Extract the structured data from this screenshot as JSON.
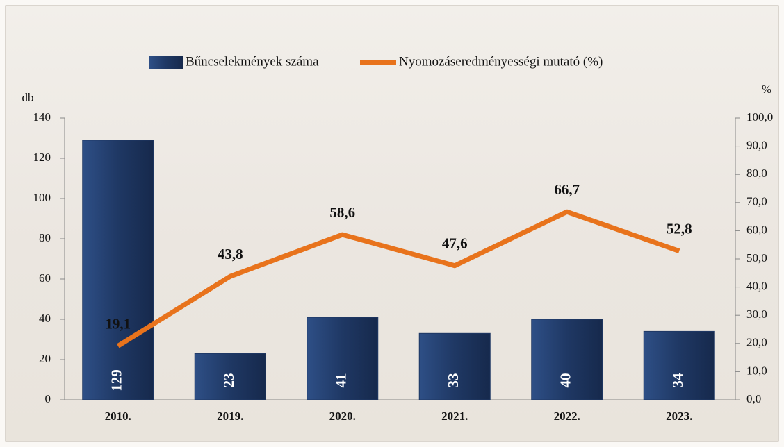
{
  "chart_data": {
    "type": "bar",
    "categories": [
      "2010.",
      "2019.",
      "2020.",
      "2021.",
      "2022.",
      "2023."
    ],
    "series": [
      {
        "name": "Bűncselekmények száma",
        "color": "#1f3864",
        "values": [
          129,
          23,
          41,
          33,
          40,
          34
        ]
      },
      {
        "name": "Nyomozáseredményességi mutató (%)",
        "type": "line",
        "axis": "y2",
        "color": "#e8731c",
        "values": [
          19.1,
          43.8,
          58.6,
          47.6,
          66.7,
          52.8
        ],
        "value_labels": [
          "19,1",
          "43,8",
          "58,6",
          "47,6",
          "66,7",
          "52,8"
        ]
      }
    ],
    "ylabel": "db",
    "y2label": "%",
    "ylim": [
      0,
      140
    ],
    "yticks": [
      0,
      20,
      40,
      60,
      80,
      100,
      120,
      140
    ],
    "y2lim": [
      0,
      100
    ],
    "y2ticks": [
      {
        "value": 0,
        "label": "0,0"
      },
      {
        "value": 10,
        "label": "10,0"
      },
      {
        "value": 20,
        "label": "20,0"
      },
      {
        "value": 30,
        "label": "30,0"
      },
      {
        "value": 40,
        "label": "40,0"
      },
      {
        "value": 50,
        "label": "50,0"
      },
      {
        "value": 60,
        "label": "60,0"
      },
      {
        "value": 70,
        "label": "70,0"
      },
      {
        "value": 80,
        "label": "80,0"
      },
      {
        "value": 90,
        "label": "90,0"
      },
      {
        "value": 100,
        "label": "100,0"
      }
    ]
  }
}
